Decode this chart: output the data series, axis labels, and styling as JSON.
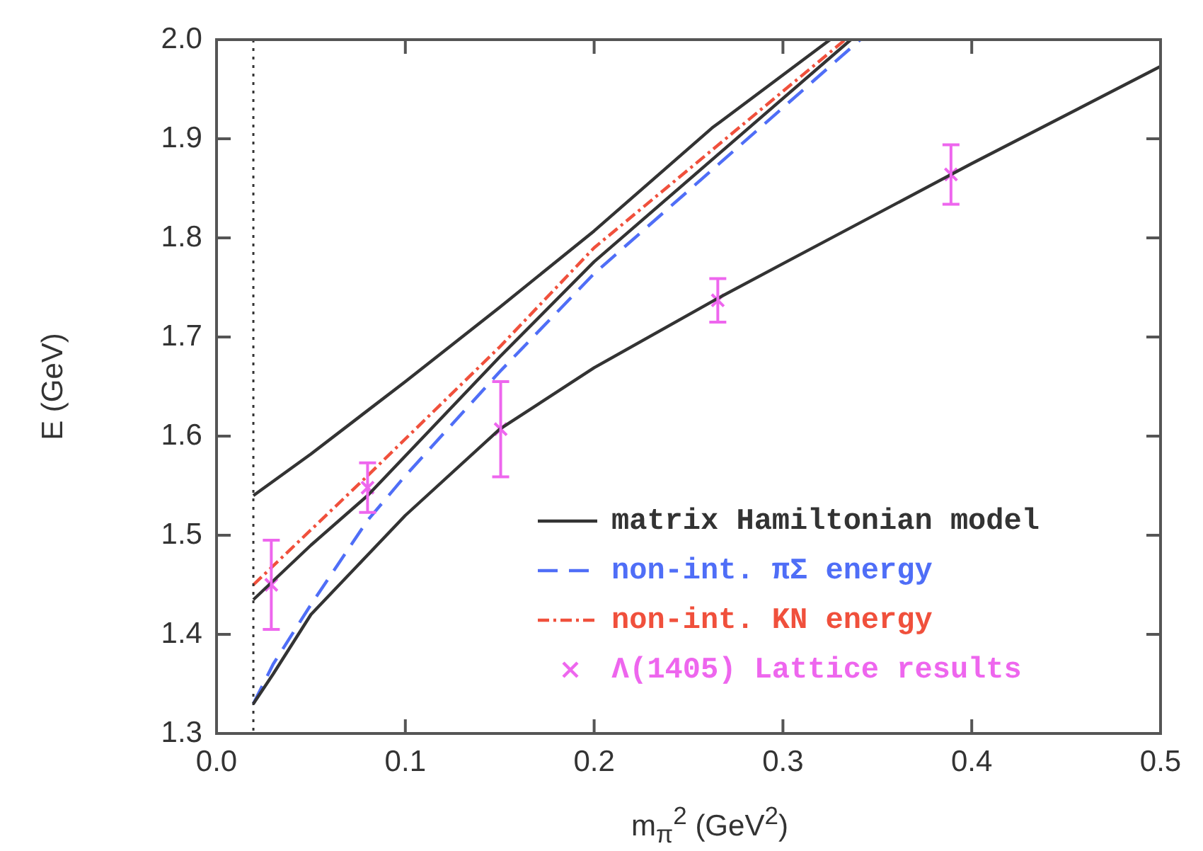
{
  "chart_data": {
    "type": "line",
    "xlabel": "m$_{π}$$^{2}$ (GeV$^{2}$)",
    "ylabel": "E (GeV)",
    "xlim": [
      0,
      0.5
    ],
    "xticks": [
      {
        "value": 0,
        "label": "0.0"
      },
      0.1,
      0.2,
      0.3,
      0.4,
      0.5
    ],
    "ylim": [
      1.3,
      2.0
    ],
    "yticks": [
      1.3,
      1.4,
      1.5,
      1.6,
      1.7,
      1.8,
      1.9,
      {
        "value": 2,
        "label": "2.0"
      }
    ],
    "grid": false,
    "legend": "bottom right",
    "ref_lines": [
      {
        "axis": "x",
        "value": 0.0195,
        "color": "#333333",
        "line_style": "dotted"
      }
    ],
    "series": [
      {
        "name": "matrix Hamiltonian model",
        "type": "line",
        "color": "#333333",
        "line_style": "solid",
        "marker": "none",
        "x": [
          0.0195,
          0.03,
          0.05,
          0.08,
          0.1,
          0.15,
          0.2,
          0.2655,
          0.3,
          0.4,
          0.5
        ],
        "values": [
          1.33,
          1.36,
          1.42,
          1.48,
          1.52,
          1.607,
          1.669,
          1.739,
          1.774,
          1.875,
          1.973
        ]
      },
      {
        "type": "line",
        "color": "#333333",
        "line_style": "solid",
        "marker": "none",
        "x": [
          0.0195,
          0.05,
          0.08,
          0.15,
          0.2,
          0.336
        ],
        "values": [
          1.435,
          1.49,
          1.54,
          1.68,
          1.776,
          2.0
        ]
      },
      {
        "type": "line",
        "color": "#333333",
        "line_style": "solid",
        "marker": "none",
        "x": [
          0.0195,
          0.05,
          0.1,
          0.15,
          0.2,
          0.2625,
          0.325
        ],
        "values": [
          1.54,
          1.582,
          1.655,
          1.73,
          1.807,
          1.911,
          2.0
        ]
      },
      {
        "name": "non-int. πΣ energy",
        "type": "line",
        "color": "#4f6ef7",
        "line_style": "dashed",
        "marker": "none",
        "x": [
          0.0195,
          0.03,
          0.05,
          0.08,
          0.1,
          0.15,
          0.2,
          0.341
        ],
        "values": [
          1.33,
          1.37,
          1.43,
          1.515,
          1.56,
          1.665,
          1.764,
          2.0
        ]
      },
      {
        "name": "non-int. KN energy",
        "type": "line",
        "color": "#f0503c",
        "line_style": "dashdot",
        "marker": "none",
        "x": [
          0.0195,
          0.08,
          0.15,
          0.2,
          0.333
        ],
        "values": [
          1.45,
          1.56,
          1.69,
          1.79,
          2.0
        ]
      },
      {
        "name": "Λ(1405) Lattice results",
        "type": "scatter",
        "color": "#ee66ee",
        "marker": "cross",
        "x": [
          0.029,
          0.08,
          0.1505,
          0.2655,
          0.389
        ],
        "values": [
          1.45,
          1.548,
          1.607,
          1.737,
          1.864
        ],
        "errors": [
          0.045,
          0.025,
          0.048,
          0.022,
          0.03
        ]
      }
    ]
  }
}
